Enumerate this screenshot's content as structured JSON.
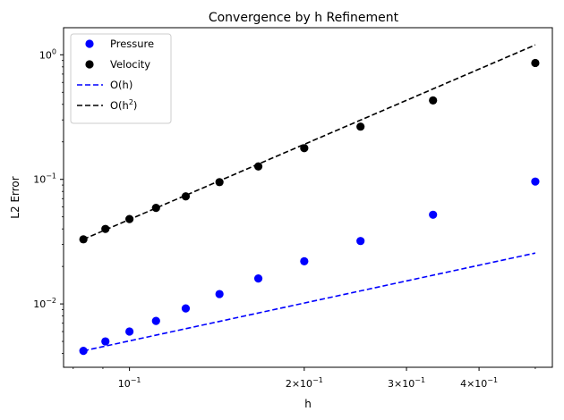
{
  "chart_data": {
    "type": "scatter",
    "title": "Convergence by h Refinement",
    "xlabel": "h",
    "ylabel": "L2 Error",
    "xscale": "log",
    "yscale": "log",
    "xlim": [
      0.077,
      0.535
    ],
    "ylim": [
      0.0031,
      1.65
    ],
    "x_ticks": [
      {
        "value": 0.1,
        "label": "10",
        "exp": "−1"
      },
      {
        "value": 0.2,
        "label": "2×10",
        "exp": "−1"
      },
      {
        "value": 0.3,
        "label": "3×10",
        "exp": "−1"
      },
      {
        "value": 0.4,
        "label": "4×10",
        "exp": "−1"
      }
    ],
    "y_ticks": [
      {
        "value": 0.01,
        "label": "10",
        "exp": "−2"
      },
      {
        "value": 0.1,
        "label": "10",
        "exp": "−1"
      },
      {
        "value": 1,
        "label": "10",
        "exp": "0"
      }
    ],
    "x": [
      0.5,
      0.3333,
      0.25,
      0.2,
      0.1667,
      0.1429,
      0.125,
      0.1111,
      0.1,
      0.0909,
      0.0833
    ],
    "series": [
      {
        "name": "Pressure",
        "kind": "marker",
        "color": "#0000ff",
        "values": [
          0.096,
          0.052,
          0.032,
          0.022,
          0.016,
          0.012,
          0.0092,
          0.0073,
          0.006,
          0.005,
          0.0042
        ]
      },
      {
        "name": "Velocity",
        "kind": "marker",
        "color": "#000000",
        "values": [
          0.86,
          0.43,
          0.265,
          0.178,
          0.127,
          0.095,
          0.073,
          0.059,
          0.048,
          0.04,
          0.033
        ]
      },
      {
        "name": "O(h)",
        "kind": "dashed-line",
        "color": "#0000ff",
        "x": [
          0.0833,
          0.5
        ],
        "values": [
          0.0042,
          0.0256
        ]
      },
      {
        "name": "O(h",
        "name_sup": "2",
        "name_tail": ")",
        "kind": "dashed-line",
        "color": "#000000",
        "x": [
          0.0833,
          0.5
        ],
        "values": [
          0.033,
          1.2
        ]
      }
    ],
    "legend": "upper-left",
    "grid": false
  }
}
